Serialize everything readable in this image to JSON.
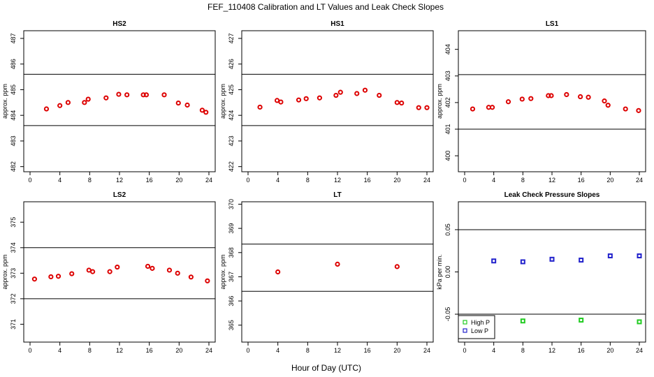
{
  "figure": {
    "title": "FEF_110408  Calibration and LT Values and Leak Check Slopes",
    "xlabel": "Hour of Day (UTC)"
  },
  "colors": {
    "primary": "#dd0000",
    "high": "#22cc22",
    "low": "#2222cc"
  },
  "chart_data": [
    {
      "type": "scatter",
      "title": "HS2",
      "xlabel": "",
      "ylabel": "approx. ppm",
      "xlim": [
        0,
        24
      ],
      "ylim": [
        481.8,
        487.3
      ],
      "xticks": [
        0,
        4,
        8,
        12,
        16,
        20,
        24
      ],
      "yticks": [
        482,
        483,
        484,
        485,
        486,
        487
      ],
      "hlines": [
        483.6,
        485.6
      ],
      "series": [
        {
          "color": "primary",
          "x": [
            2.2,
            4.0,
            5.1,
            7.3,
            7.8,
            10.2,
            11.9,
            13.0,
            15.2,
            15.6,
            18.0,
            19.9,
            21.1,
            23.1,
            23.6
          ],
          "y": [
            484.25,
            484.38,
            484.5,
            484.5,
            484.63,
            484.68,
            484.82,
            484.8,
            484.8,
            484.8,
            484.8,
            484.48,
            484.4,
            484.2,
            484.12
          ]
        }
      ]
    },
    {
      "type": "scatter",
      "title": "HS1",
      "xlabel": "",
      "ylabel": "approx. ppm",
      "xlim": [
        0,
        24
      ],
      "ylim": [
        421.8,
        427.3
      ],
      "xticks": [
        0,
        4,
        8,
        12,
        16,
        20,
        24
      ],
      "yticks": [
        422,
        423,
        424,
        425,
        426,
        427
      ],
      "hlines": [
        423.6,
        425.6
      ],
      "series": [
        {
          "color": "primary",
          "x": [
            1.6,
            3.9,
            4.4,
            6.8,
            7.8,
            9.6,
            11.8,
            12.4,
            14.6,
            15.7,
            17.6,
            20.0,
            20.6,
            22.9,
            24.0
          ],
          "y": [
            424.32,
            424.58,
            424.52,
            424.6,
            424.65,
            424.68,
            424.78,
            424.9,
            424.85,
            424.98,
            424.78,
            424.5,
            424.48,
            424.3,
            424.3
          ]
        }
      ]
    },
    {
      "type": "scatter",
      "title": "LS1",
      "xlabel": "",
      "ylabel": "approx. ppm",
      "xlim": [
        0,
        24
      ],
      "ylim": [
        399.4,
        404.7
      ],
      "xticks": [
        0,
        4,
        8,
        12,
        16,
        20,
        24
      ],
      "yticks": [
        400,
        401,
        402,
        403,
        404
      ],
      "hlines": [
        401.0,
        403.05
      ],
      "series": [
        {
          "color": "primary",
          "x": [
            1.1,
            3.3,
            3.8,
            6.0,
            7.9,
            9.1,
            11.5,
            11.9,
            14.0,
            15.9,
            17.0,
            19.2,
            19.7,
            22.1,
            23.9
          ],
          "y": [
            401.76,
            401.82,
            401.82,
            402.03,
            402.13,
            402.15,
            402.26,
            402.26,
            402.3,
            402.22,
            402.2,
            402.06,
            401.9,
            401.76,
            401.7
          ]
        }
      ]
    },
    {
      "type": "scatter",
      "title": "LS2",
      "xlabel": "",
      "ylabel": "approx. ppm",
      "xlim": [
        0,
        24
      ],
      "ylim": [
        370.3,
        375.8
      ],
      "xticks": [
        0,
        4,
        8,
        12,
        16,
        20,
        24
      ],
      "yticks": [
        371,
        372,
        373,
        374,
        375
      ],
      "hlines": [
        372.0,
        374.0
      ],
      "series": [
        {
          "color": "primary",
          "x": [
            0.6,
            2.8,
            3.8,
            5.6,
            7.9,
            8.4,
            10.7,
            11.7,
            15.8,
            16.4,
            18.7,
            19.8,
            21.6,
            23.8
          ],
          "y": [
            372.77,
            372.86,
            372.88,
            372.98,
            373.12,
            373.06,
            373.06,
            373.24,
            373.27,
            373.19,
            373.12,
            373.0,
            372.85,
            372.7
          ]
        }
      ]
    },
    {
      "type": "scatter",
      "title": "LT",
      "xlabel": "",
      "ylabel": "approx. ppm",
      "xlim": [
        0,
        24
      ],
      "ylim": [
        364.3,
        370.1
      ],
      "xticks": [
        0,
        4,
        8,
        12,
        16,
        20,
        24
      ],
      "yticks": [
        365,
        366,
        367,
        368,
        369,
        370
      ],
      "hlines": [
        366.4,
        368.35
      ],
      "series": [
        {
          "color": "primary",
          "x": [
            4.0,
            12.0,
            20.0
          ],
          "y": [
            367.2,
            367.52,
            367.42
          ]
        }
      ]
    },
    {
      "type": "scatter",
      "title": "Leak Check Pressure Slopes",
      "xlabel": "",
      "ylabel": "kPa per min.",
      "xlim": [
        0,
        24
      ],
      "ylim": [
        -0.083,
        0.083
      ],
      "xticks": [
        0,
        4,
        8,
        12,
        16,
        20,
        24
      ],
      "yticks": [
        -0.05,
        0.0,
        0.05
      ],
      "ytick_labels": [
        "-0.05",
        "0.00",
        "0.05"
      ],
      "hlines": [
        0.05,
        -0.05
      ],
      "legend": "bottom-left",
      "series": [
        {
          "name": "High P",
          "color": "high",
          "marker": "square",
          "x": [
            8.0,
            16.0,
            24.0
          ],
          "y": [
            -0.058,
            -0.057,
            -0.059
          ]
        },
        {
          "name": "Low P",
          "color": "low",
          "marker": "square",
          "x": [
            4.0,
            8.0,
            12.0,
            16.0,
            20.0,
            24.0
          ],
          "y": [
            0.013,
            0.012,
            0.015,
            0.014,
            0.019,
            0.019
          ]
        }
      ]
    }
  ]
}
